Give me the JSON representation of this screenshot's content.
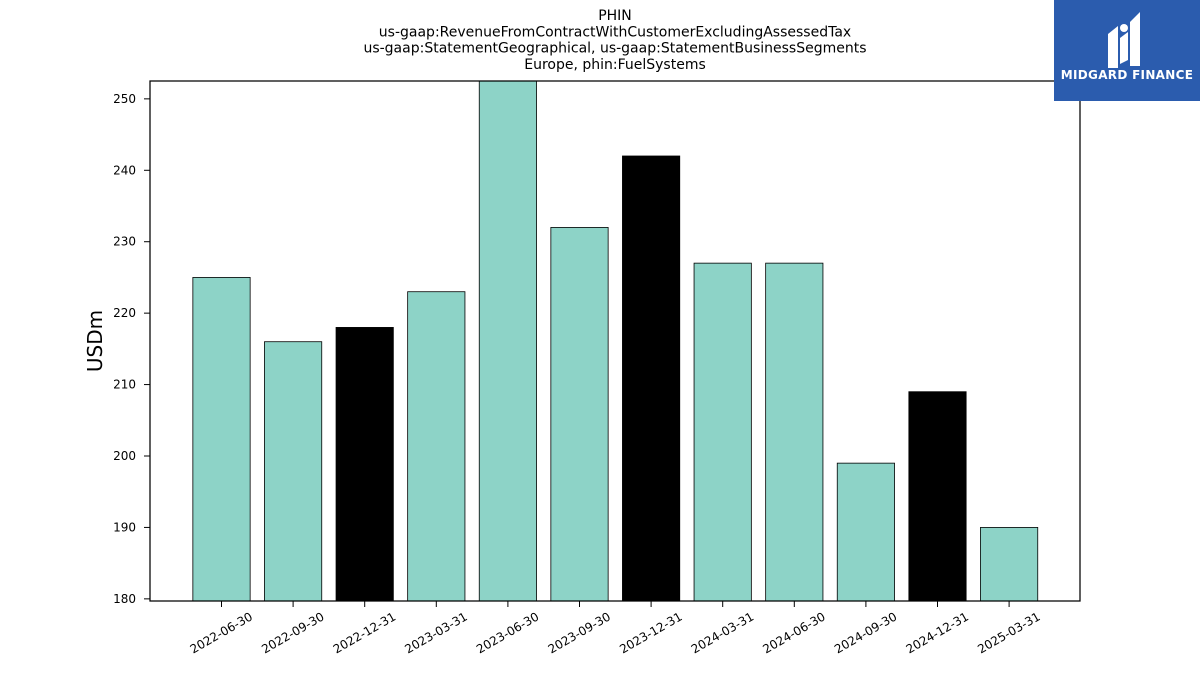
{
  "chart_data": {
    "type": "bar",
    "title_lines": [
      "PHIN",
      "us-gaap:RevenueFromContractWithCustomerExcludingAssessedTax",
      "us-gaap:StatementGeographical, us-gaap:StatementBusinessSegments",
      "Europe, phin:FuelSystems"
    ],
    "xlabel": "",
    "ylabel": "USDm",
    "categories": [
      "2022-06-30",
      "2022-09-30",
      "2022-12-31",
      "2023-03-31",
      "2023-06-30",
      "2023-09-30",
      "2023-12-31",
      "2024-03-31",
      "2024-06-30",
      "2024-09-30",
      "2024-12-31",
      "2025-03-31"
    ],
    "values": [
      225,
      216,
      218,
      223,
      253,
      232,
      242,
      227,
      227,
      199,
      209,
      190
    ],
    "highlight": [
      false,
      false,
      true,
      false,
      false,
      false,
      true,
      false,
      false,
      false,
      true,
      false
    ],
    "ylim": [
      179.7,
      252.5
    ],
    "yticks": [
      180,
      190,
      200,
      210,
      220,
      230,
      240,
      250
    ],
    "grid": false,
    "colors": {
      "bar": "#8dd3c7",
      "highlight": "#000000",
      "edge": "#000000"
    }
  },
  "logo": {
    "text": "MIDGARD FINANCE",
    "background": "#2b5cae"
  }
}
